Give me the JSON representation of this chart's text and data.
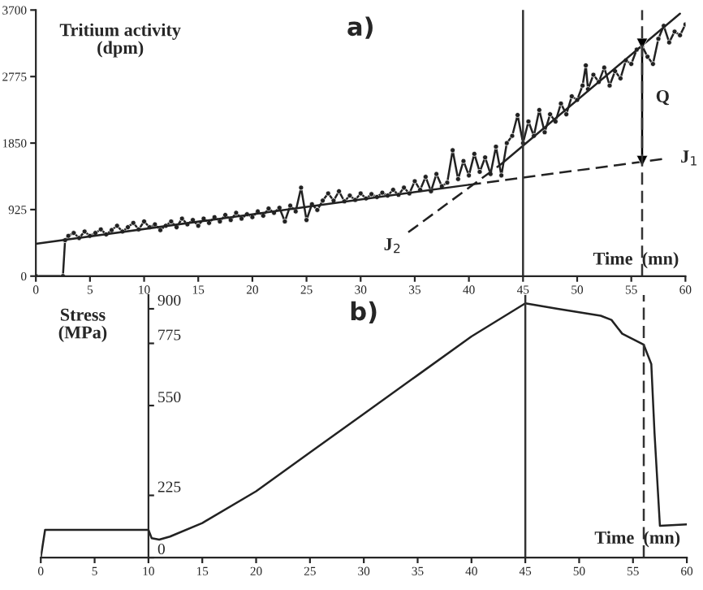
{
  "chart_data": [
    {
      "type": "line",
      "title": "a)",
      "xlabel": "Time  (mn)",
      "ylabel": "Tritium activity\n(dpm)",
      "xlim": [
        0,
        60
      ],
      "xticks": [
        0,
        5,
        10,
        15,
        20,
        25,
        30,
        35,
        40,
        45,
        50,
        55,
        60
      ],
      "ylim": [
        0,
        3700
      ],
      "yticks": [
        0,
        925,
        1850,
        2775,
        3700
      ],
      "grid": false,
      "series": [
        {
          "color": "#222222",
          "marker": "circle",
          "line_style": "solid",
          "x": [
            0,
            2.5,
            2.7,
            3,
            3.5,
            4,
            4.5,
            5,
            5.5,
            6,
            6.5,
            7,
            7.5,
            8,
            8.5,
            9,
            9.5,
            10,
            10.5,
            11,
            11.5,
            12,
            12.5,
            13,
            13.5,
            14,
            14.5,
            15,
            15.5,
            16,
            16.5,
            17,
            17.5,
            18,
            18.5,
            19,
            19.5,
            20,
            20.5,
            21,
            21.5,
            22,
            22.5,
            23,
            23.5,
            24,
            24.5,
            25,
            25.5,
            26,
            26.5,
            27,
            27.5,
            28,
            28.5,
            29,
            29.5,
            30,
            30.5,
            31,
            31.5,
            32,
            32.5,
            33,
            33.5,
            34,
            34.5,
            35,
            35.5,
            36,
            36.5,
            37,
            37.5,
            38,
            38.5,
            39,
            39.5,
            40,
            40.5,
            41,
            41.5,
            42,
            42.5,
            43,
            43.5,
            44,
            44.5,
            45,
            45.5,
            46,
            46.5,
            47,
            47.5,
            48,
            48.5,
            49,
            49.5,
            50,
            50.5,
            50.8,
            51,
            51.5,
            52,
            52.5,
            53,
            53.5,
            54,
            54.5,
            55,
            55.5,
            56,
            56.5,
            57,
            57.5,
            58,
            58.5,
            59,
            59.5,
            60
          ],
          "values": [
            0,
            0,
            500,
            560,
            600,
            530,
            620,
            560,
            600,
            650,
            580,
            640,
            700,
            620,
            680,
            740,
            650,
            760,
            680,
            720,
            640,
            700,
            760,
            680,
            800,
            720,
            780,
            700,
            800,
            740,
            820,
            760,
            850,
            780,
            880,
            800,
            860,
            820,
            900,
            840,
            940,
            880,
            950,
            760,
            980,
            900,
            1230,
            780,
            1000,
            920,
            1050,
            1150,
            1050,
            1180,
            1040,
            1120,
            1060,
            1150,
            1080,
            1140,
            1100,
            1160,
            1120,
            1200,
            1130,
            1230,
            1150,
            1320,
            1200,
            1380,
            1180,
            1420,
            1250,
            1300,
            1750,
            1350,
            1600,
            1400,
            1700,
            1450,
            1650,
            1420,
            1800,
            1400,
            1850,
            1950,
            2240,
            1850,
            2150,
            1950,
            2310,
            2000,
            2250,
            2150,
            2400,
            2250,
            2500,
            2450,
            2650,
            2930,
            2600,
            2800,
            2700,
            2900,
            2650,
            2850,
            2750,
            3000,
            2950,
            3150,
            3200,
            3050,
            2950,
            3300,
            3480,
            3250,
            3400,
            3350,
            3500
          ]
        },
        {
          "color": "#222222",
          "marker": "none",
          "line_style": "solid",
          "x": [
            0,
            40
          ],
          "values": [
            450,
            1270
          ]
        },
        {
          "color": "#222222",
          "marker": "none",
          "line_style": "dashed",
          "x": [
            40,
            58
          ],
          "values": [
            1270,
            1630
          ]
        },
        {
          "color": "#222222",
          "marker": "none",
          "line_style": "dashed",
          "x": [
            34.4,
            43
          ],
          "values": [
            610,
            1560
          ]
        },
        {
          "color": "#222222",
          "marker": "none",
          "line_style": "solid",
          "x": [
            43,
            59.5
          ],
          "values": [
            1560,
            3650
          ]
        },
        {
          "color": "#000000",
          "marker": "triangle",
          "line_style": "solid",
          "x": [
            56,
            56
          ],
          "values": [
            3230,
            1600
          ]
        }
      ],
      "ref_lines": [
        {
          "axis": "x",
          "value": 45,
          "color": "#333333",
          "line_style": "solid"
        },
        {
          "axis": "x",
          "value": 56,
          "color": "#333333",
          "line_style": "dashed"
        }
      ],
      "annotations": [
        {
          "text": "J$_{1}$",
          "x": 58.7,
          "y": 1640
        },
        {
          "text": "J$_{2}$",
          "x": 34.4,
          "y": 610
        },
        {
          "text": "Q",
          "x": 56,
          "y": 2480
        }
      ]
    },
    {
      "type": "line",
      "title": "b)",
      "xlabel": "Time  (mn)",
      "ylabel": "Stress\n(MPa)",
      "xlim": [
        0,
        60
      ],
      "xticks": [
        0,
        5,
        10,
        15,
        20,
        25,
        30,
        35,
        40,
        45,
        50,
        55,
        60
      ],
      "ylim": [
        0,
        950
      ],
      "yticks": [
        0,
        225,
        550,
        775,
        900
      ],
      "grid": false,
      "series": [
        {
          "color": "#222222",
          "marker": "none",
          "line_style": "solid",
          "x": [
            0,
            0.4,
            10,
            10.3,
            11,
            12,
            15,
            20,
            25,
            30,
            35,
            40,
            45,
            48,
            52,
            53,
            54,
            56,
            56.7,
            57,
            57.5,
            60
          ],
          "values": [
            0,
            100,
            100,
            70,
            65,
            76,
            125,
            240,
            380,
            520,
            660,
            800,
            920,
            900,
            875,
            860,
            810,
            770,
            700,
            450,
            115,
            120
          ]
        }
      ],
      "ref_lines": [
        {
          "axis": "x",
          "value": 45,
          "color": "#333333",
          "line_style": "solid"
        },
        {
          "axis": "x",
          "value": 56,
          "color": "#333333",
          "line_style": "dashed"
        }
      ]
    }
  ]
}
